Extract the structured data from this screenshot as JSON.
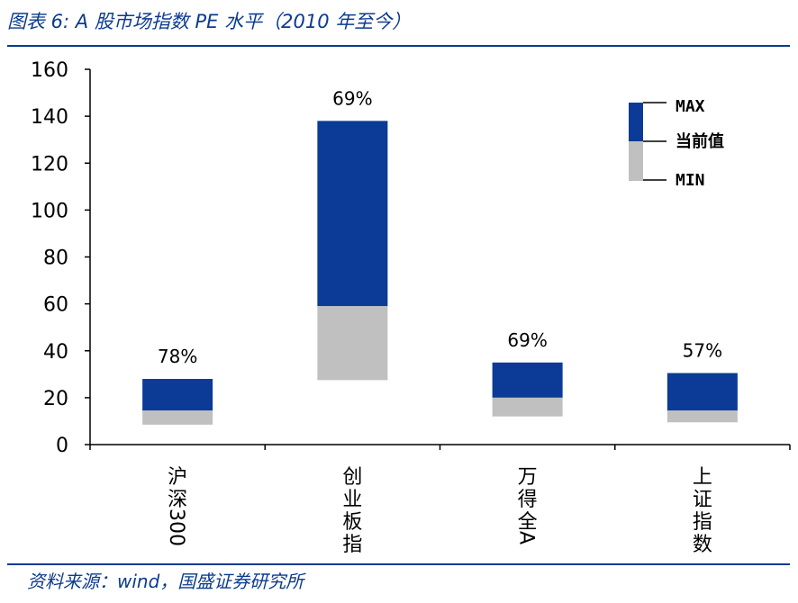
{
  "header": {
    "title": "图表 6:  A 股市场指数 PE 水平（2010 年至今）"
  },
  "footer": {
    "source": "资料来源：wind，国盛证券研究所"
  },
  "colors": {
    "upper": "#0b3b96",
    "lower": "#c0c0c0",
    "accent": "#0b3b8f"
  },
  "legend": {
    "max": "MAX",
    "current": "当前值",
    "min": "MIN"
  },
  "chart_data": {
    "type": "bar",
    "subtype": "floating-range",
    "categories": [
      "沪深300",
      "创业板指",
      "万得全A",
      "上证指数"
    ],
    "max": [
      28,
      138,
      35,
      30.5
    ],
    "current": [
      14.5,
      59,
      20,
      14.5
    ],
    "min": [
      8.5,
      27.5,
      12,
      9.5
    ],
    "percentile_labels": [
      "78%",
      "69%",
      "69%",
      "57%"
    ],
    "ylim": [
      0,
      160
    ],
    "yticks": [
      0,
      20,
      40,
      60,
      80,
      100,
      120,
      140,
      160
    ],
    "grid": false,
    "legend_position": "top-right"
  }
}
